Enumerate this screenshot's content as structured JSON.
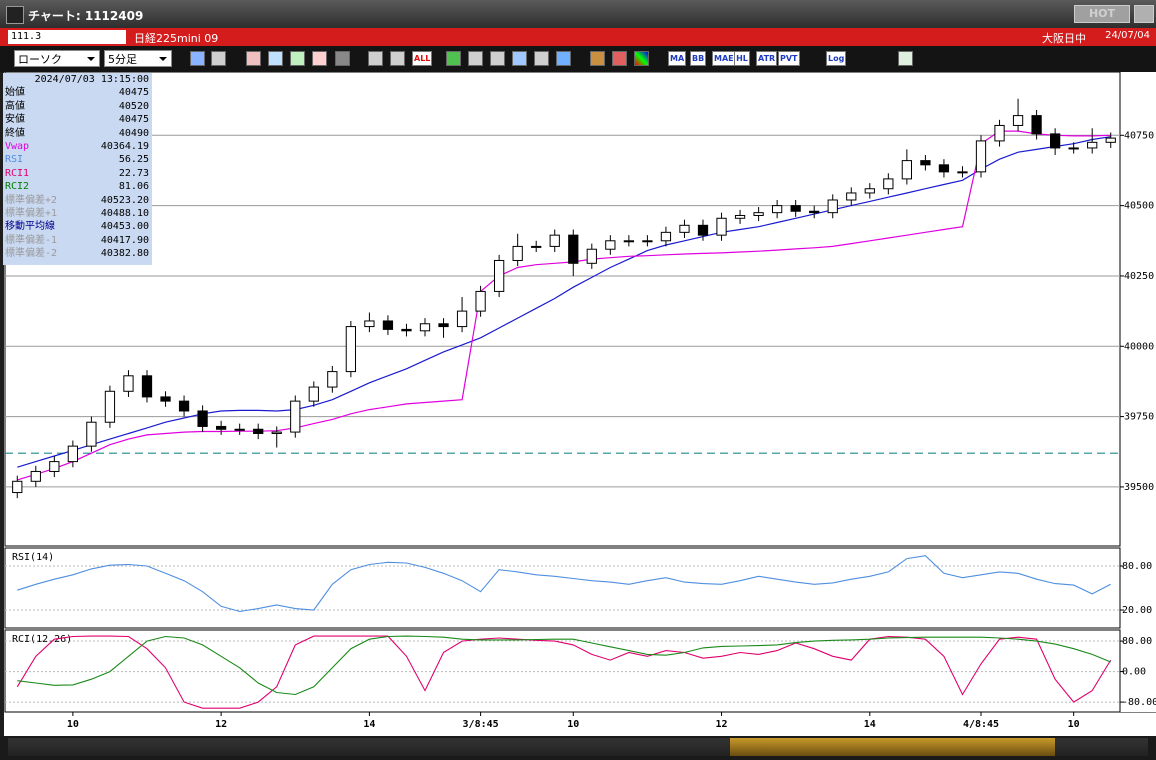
{
  "window": {
    "title": "チャート: 1112409",
    "hot": "HOT"
  },
  "header": {
    "code": "111.3",
    "name": "日経225mini 09",
    "session": "大阪日中",
    "date": "24/07/04"
  },
  "toolbar": {
    "chart_type": "ローソク",
    "interval": "5分足",
    "buttons": [
      "ALL",
      "MA",
      "BB",
      "MAE",
      "HL",
      "ATR",
      "PVT",
      "Log"
    ]
  },
  "info_panel": {
    "datetime": "2024/07/03  13:15:00",
    "rows": [
      {
        "label": "始値",
        "value": "40475",
        "color": "#000000"
      },
      {
        "label": "高値",
        "value": "40520",
        "color": "#000000"
      },
      {
        "label": "安値",
        "value": "40475",
        "color": "#000000"
      },
      {
        "label": "終値",
        "value": "40490",
        "color": "#000000"
      },
      {
        "label": "Vwap",
        "value": "40364.19",
        "color": "#e000e0"
      },
      {
        "label": "RSI",
        "value": "56.25",
        "color": "#4f8fdf"
      },
      {
        "label": "RCI1",
        "value": "22.73",
        "color": "#e00070"
      },
      {
        "label": "RCI2",
        "value": "81.06",
        "color": "#008000"
      },
      {
        "label": "標準偏差+2",
        "value": "40523.20",
        "color": "#9a9a9a"
      },
      {
        "label": "標準偏差+1",
        "value": "40488.10",
        "color": "#9a9a9a"
      },
      {
        "label": "移動平均線",
        "value": "40453.00",
        "color": "#00008b"
      },
      {
        "label": "標準偏差-1",
        "value": "40417.90",
        "color": "#9a9a9a"
      },
      {
        "label": "標準偏差-2",
        "value": "40382.80",
        "color": "#9a9a9a"
      }
    ]
  },
  "chart_data": [
    {
      "type": "candlestick",
      "categories": [
        null,
        null,
        null,
        "10",
        null,
        null,
        null,
        null,
        null,
        null,
        null,
        "12",
        null,
        null,
        null,
        null,
        null,
        null,
        null,
        "14",
        null,
        null,
        null,
        null,
        null,
        "3/8:45",
        null,
        null,
        null,
        null,
        "10",
        null,
        null,
        null,
        null,
        null,
        null,
        null,
        "12",
        null,
        null,
        null,
        null,
        null,
        null,
        null,
        "14",
        null,
        null,
        null,
        null,
        null,
        "4/8:45",
        null,
        null,
        null,
        null,
        "10",
        null,
        null
      ],
      "open": [
        39480,
        39520,
        39555,
        39590,
        39645,
        39730,
        39840,
        39895,
        39820,
        39805,
        39770,
        39715,
        39705,
        39705,
        39690,
        39695,
        39805,
        39855,
        39910,
        40070,
        40090,
        40060,
        40055,
        40080,
        40070,
        40125,
        40195,
        40305,
        40355,
        40355,
        40395,
        40295,
        40345,
        40375,
        40375,
        40375,
        40405,
        40430,
        40395,
        40455,
        40465,
        40475,
        40500,
        40480,
        40475,
        40520,
        40545,
        40560,
        40595,
        40660,
        40645,
        40620,
        40620,
        40730,
        40785,
        40820,
        40755,
        40705,
        40705,
        40725
      ],
      "high": [
        39540,
        39575,
        39610,
        39665,
        39750,
        39860,
        39915,
        39915,
        39840,
        39825,
        39790,
        39735,
        39725,
        39725,
        39715,
        39825,
        39875,
        39930,
        40090,
        40120,
        40110,
        40080,
        40100,
        40100,
        40175,
        40215,
        40325,
        40400,
        40375,
        40415,
        40415,
        40365,
        40395,
        40395,
        40395,
        40425,
        40450,
        40450,
        40475,
        40485,
        40495,
        40520,
        40520,
        40500,
        40540,
        40565,
        40580,
        40615,
        40700,
        40680,
        40665,
        40640,
        40750,
        40805,
        40880,
        40840,
        40775,
        40725,
        40775,
        40760
      ],
      "low": [
        39460,
        39500,
        39535,
        39570,
        39625,
        39710,
        39820,
        39800,
        39785,
        39750,
        39695,
        39685,
        39685,
        39670,
        39640,
        39675,
        39785,
        39835,
        39890,
        40050,
        40040,
        40035,
        40035,
        40030,
        40050,
        40105,
        40175,
        40285,
        40335,
        40335,
        40250,
        40275,
        40325,
        40355,
        40355,
        40355,
        40385,
        40375,
        40375,
        40435,
        40445,
        40455,
        40460,
        40455,
        40455,
        40500,
        40525,
        40540,
        40575,
        40625,
        40600,
        40600,
        40600,
        40710,
        40765,
        40735,
        40680,
        40685,
        40685,
        40705
      ],
      "close": [
        39520,
        39555,
        39590,
        39645,
        39730,
        39840,
        39895,
        39820,
        39805,
        39770,
        39715,
        39705,
        39705,
        39690,
        39695,
        39805,
        39855,
        39910,
        40070,
        40090,
        40060,
        40055,
        40080,
        40070,
        40125,
        40195,
        40305,
        40355,
        40355,
        40395,
        40295,
        40345,
        40375,
        40375,
        40375,
        40405,
        40430,
        40395,
        40455,
        40465,
        40475,
        40500,
        40480,
        40475,
        40520,
        40545,
        40560,
        40595,
        40660,
        40645,
        40620,
        40620,
        40730,
        40785,
        40820,
        40755,
        40705,
        40705,
        40725,
        40740
      ],
      "overlays": [
        {
          "color": "#1a1ad0",
          "values": [
            39570,
            39590,
            39610,
            39630,
            39650,
            39670,
            39690,
            39710,
            39730,
            39745,
            39760,
            39770,
            39772,
            39772,
            39770,
            39775,
            39790,
            39810,
            39840,
            39870,
            39895,
            39920,
            39950,
            39980,
            40005,
            40030,
            40065,
            40100,
            40135,
            40170,
            40210,
            40245,
            40280,
            40310,
            40340,
            40360,
            40375,
            40390,
            40405,
            40415,
            40425,
            40440,
            40455,
            40470,
            40485,
            40500,
            40515,
            40530,
            40545,
            40560,
            40575,
            40590,
            40630,
            40665,
            40690,
            40700,
            40710,
            40720,
            40735,
            40745
          ]
        },
        {
          "color": "#e000e0",
          "values": [
            39525,
            39545,
            39565,
            39590,
            39620,
            39650,
            39670,
            39685,
            39690,
            39695,
            39697,
            39697,
            39698,
            39698,
            39700,
            39710,
            39725,
            39740,
            39760,
            39775,
            39785,
            39795,
            39800,
            39805,
            39810,
            40195,
            40250,
            40280,
            40290,
            40295,
            40300,
            40310,
            40315,
            40320,
            40322,
            40325,
            40328,
            40330,
            40332,
            40335,
            40338,
            40342,
            40346,
            40350,
            40355,
            40365,
            40375,
            40385,
            40395,
            40405,
            40415,
            40425,
            40720,
            40765,
            40765,
            40755,
            40750,
            40748,
            40748,
            40750
          ]
        }
      ],
      "hline": 39620,
      "ylim": [
        39290,
        40975
      ],
      "yticks": [
        39500,
        39750,
        40000,
        40250,
        40500,
        40750
      ],
      "grid": true
    },
    {
      "type": "line",
      "title": "RSI(14)",
      "series": [
        {
          "color": "#4f8fdf",
          "values": [
            47,
            55,
            62,
            68,
            76,
            81,
            82,
            80,
            70,
            60,
            45,
            25,
            18,
            22,
            27,
            22,
            20,
            55,
            75,
            82,
            85,
            84,
            78,
            70,
            60,
            45,
            75,
            72,
            68,
            66,
            63,
            60,
            58,
            55,
            60,
            64,
            58,
            56,
            55,
            60,
            66,
            62,
            58,
            55,
            57,
            62,
            66,
            72,
            90,
            94,
            70,
            64,
            68,
            72,
            70,
            62,
            56,
            54,
            42,
            55
          ]
        }
      ],
      "ylim": [
        -4.5,
        104.5
      ],
      "yticks": [
        {
          "value": 20,
          "label": "20.00"
        },
        {
          "value": 80,
          "label": "80.00"
        }
      ],
      "grid": true
    },
    {
      "type": "line",
      "title": "RCI(12,26)",
      "series": [
        {
          "color": "#e0006e",
          "values": [
            -40,
            40,
            85,
            92,
            93,
            93,
            92,
            60,
            10,
            -80,
            -96,
            -96,
            -96,
            -80,
            -40,
            70,
            93,
            93,
            93,
            93,
            93,
            40,
            -50,
            50,
            80,
            85,
            88,
            85,
            82,
            80,
            70,
            45,
            30,
            50,
            40,
            55,
            50,
            35,
            40,
            50,
            45,
            55,
            75,
            60,
            40,
            30,
            85,
            92,
            90,
            85,
            40,
            -60,
            20,
            85,
            90,
            85,
            -20,
            -80,
            -50,
            30
          ]
        },
        {
          "color": "#1a8a1a",
          "values": [
            -24,
            -30,
            -36,
            -35,
            -20,
            0,
            40,
            80,
            92,
            88,
            70,
            40,
            10,
            -30,
            -55,
            -60,
            -40,
            10,
            60,
            85,
            92,
            93,
            92,
            90,
            85,
            83,
            83,
            83,
            84,
            85,
            85,
            75,
            65,
            55,
            45,
            43,
            50,
            62,
            66,
            67,
            68,
            70,
            76,
            80,
            82,
            83,
            85,
            88,
            89,
            90,
            90,
            90,
            90,
            88,
            85,
            80,
            72,
            60,
            45,
            25
          ]
        }
      ],
      "ylim": [
        -106,
        109
      ],
      "yticks": [
        {
          "value": -80,
          "label": "-80.00"
        },
        {
          "value": 0,
          "label": "0.00"
        },
        {
          "value": 80,
          "label": "80.00"
        }
      ],
      "grid": true
    }
  ]
}
